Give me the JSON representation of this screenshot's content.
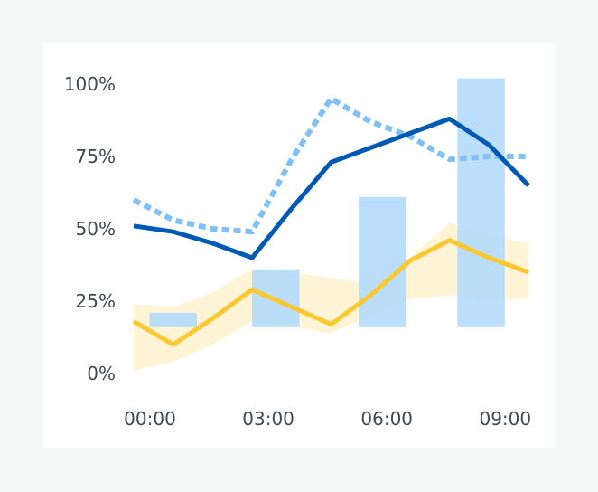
{
  "chart_data": {
    "type": "line",
    "x_ticks": [
      "00:00",
      "03:00",
      "06:00",
      "09:00"
    ],
    "x": [
      0,
      1,
      2,
      3,
      4,
      5,
      6,
      7,
      8,
      9,
      10
    ],
    "ylim": [
      0,
      100
    ],
    "y_ticks": [
      "0%",
      "25%",
      "50%",
      "75%",
      "100%"
    ],
    "grid": false,
    "bars": {
      "color": "#b3dafc",
      "items": [
        {
          "x_range": [
            0.4,
            1.6
          ],
          "low": 16,
          "high": 21
        },
        {
          "x_range": [
            3.0,
            4.2
          ],
          "low": 16,
          "high": 36
        },
        {
          "x_range": [
            5.7,
            6.9
          ],
          "low": 16,
          "high": 61
        },
        {
          "x_range": [
            8.2,
            9.4
          ],
          "low": 16,
          "high": 102
        }
      ]
    },
    "band": {
      "color": "#fff0c8",
      "x": [
        0,
        1,
        2,
        3,
        4,
        5,
        6,
        7,
        8,
        9,
        10
      ],
      "low": [
        1,
        4,
        10,
        18,
        16,
        14,
        20,
        26,
        27,
        25,
        26
      ],
      "high": [
        24,
        23,
        28,
        36,
        35,
        33,
        31,
        40,
        52,
        48,
        45
      ]
    },
    "series": [
      {
        "style": "solid",
        "color": "#0059b3",
        "values": [
          51,
          49,
          45,
          40,
          57,
          73,
          78,
          83,
          88,
          79,
          65
        ]
      },
      {
        "style": "dashed",
        "color": "#80c0f5",
        "values": [
          60,
          53,
          50,
          49,
          74,
          95,
          87,
          82,
          74,
          75,
          75
        ]
      },
      {
        "style": "solid",
        "color": "#fcc830",
        "values": [
          18,
          10,
          19,
          29,
          23,
          17,
          27,
          39,
          46,
          40,
          35
        ]
      }
    ]
  }
}
